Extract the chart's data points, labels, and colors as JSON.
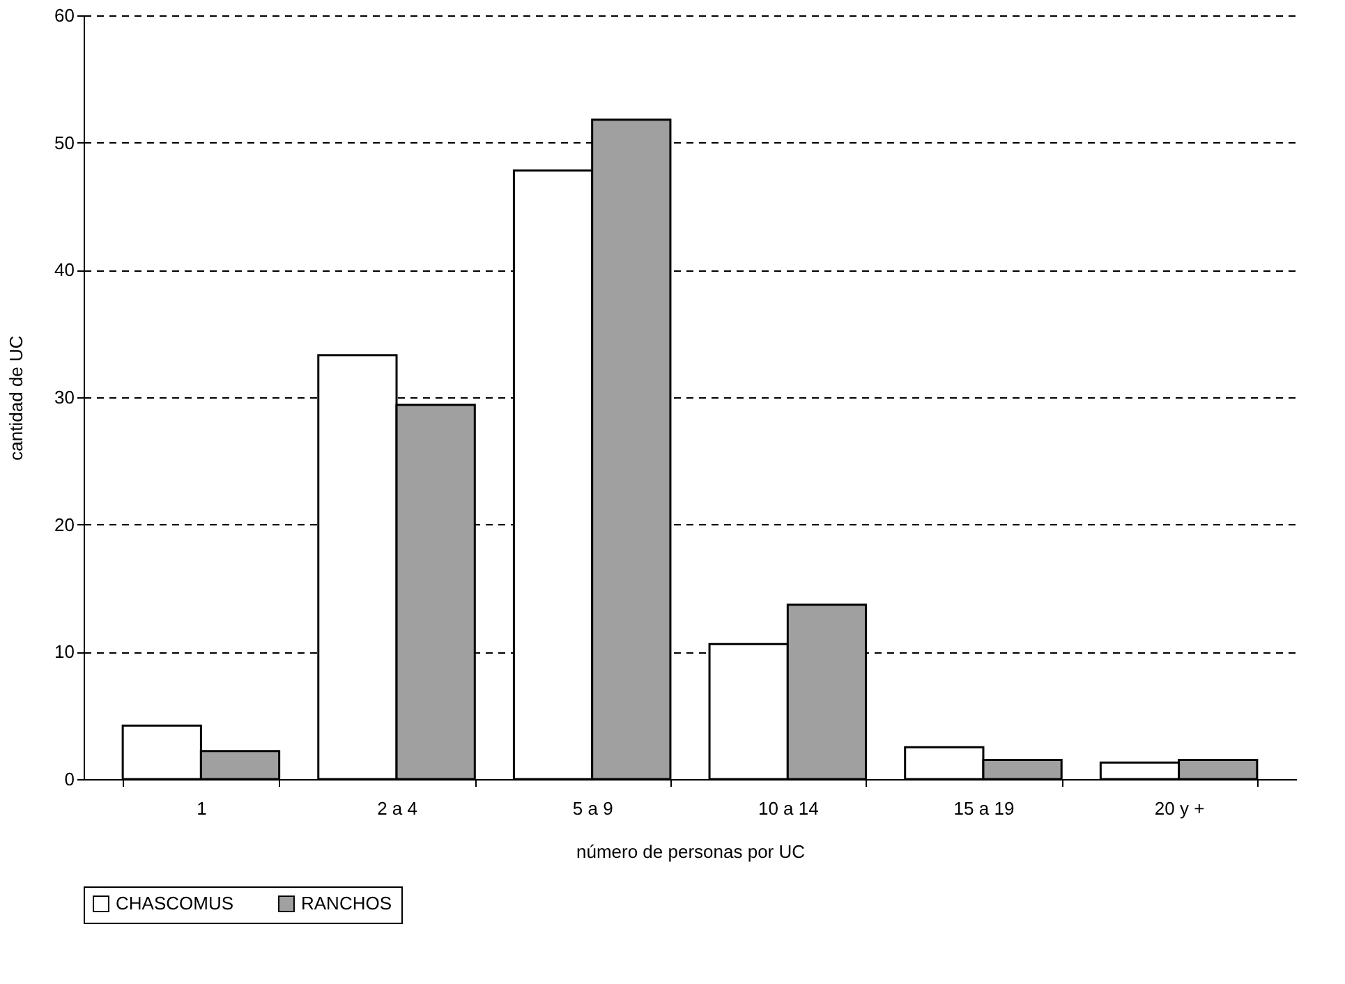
{
  "chart_data": {
    "type": "bar",
    "xlabel": "número de personas por UC",
    "ylabel": "cantidad de UC",
    "categories": [
      "1",
      "2 a 4",
      "5 a 9",
      "10 a 14",
      "15 a 19",
      "20 y +"
    ],
    "series": [
      {
        "name": "CHASCOMUS",
        "color": "#ffffff",
        "values": [
          4.2,
          33.3,
          47.8,
          10.6,
          2.5,
          1.3
        ]
      },
      {
        "name": "RANCHOS",
        "color": "#a0a0a0",
        "values": [
          2.2,
          29.4,
          51.8,
          13.7,
          1.5,
          1.5
        ]
      }
    ],
    "ylim": [
      0,
      60
    ],
    "yticks": [
      0,
      10,
      20,
      30,
      40,
      50,
      60
    ],
    "grid": "y",
    "legend": "bottom"
  }
}
